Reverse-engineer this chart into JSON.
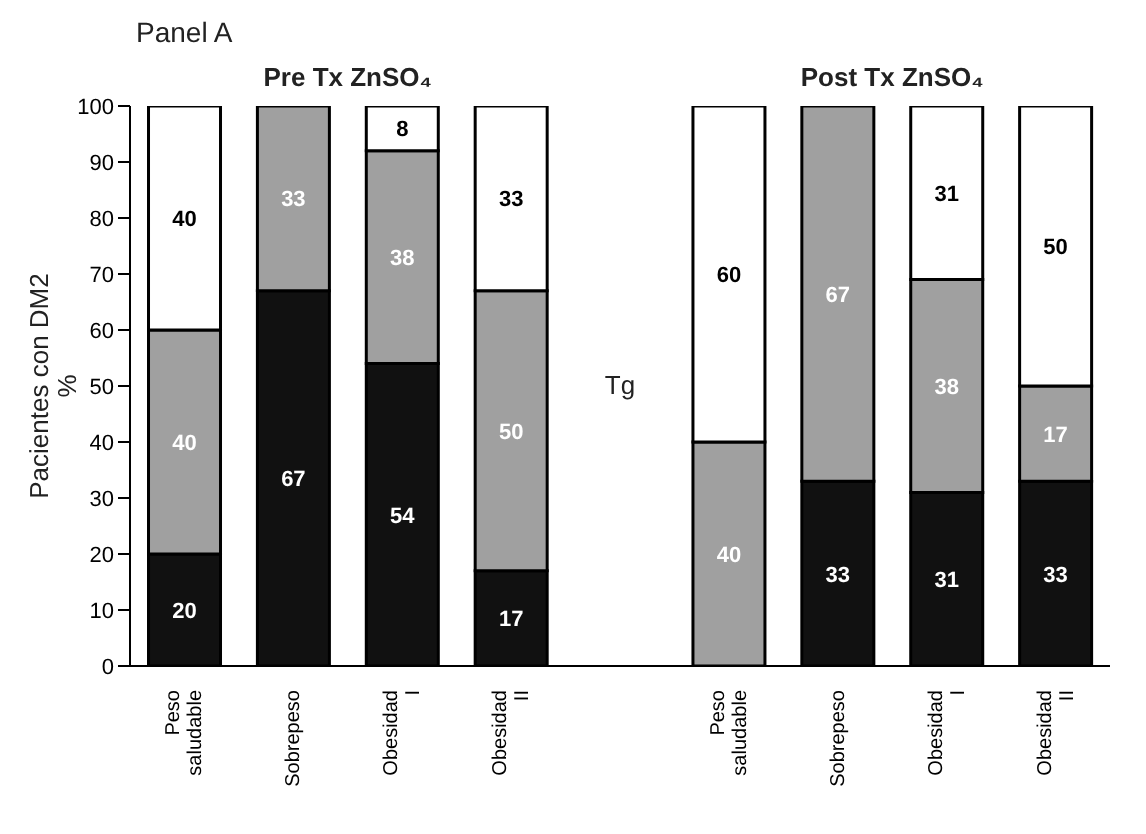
{
  "chart_data": {
    "type": "bar",
    "title": "Panel A",
    "ylabel": "Pacientes con  DM2\n%",
    "annotations": [
      "Pre Tx ZnSO₄",
      "Post Tx ZnSO₄",
      "Tg"
    ],
    "categories": [
      "Peso saludable",
      "Sobrepeso",
      "Obesidad I",
      "Obesidad II",
      null,
      "Peso saludable",
      "Sobrepeso",
      "Obesidad I",
      "Obesidad II"
    ],
    "stacked": true,
    "ylim": [
      0,
      100
    ],
    "yticks": [
      0,
      10,
      20,
      30,
      40,
      50,
      60,
      70,
      80,
      90,
      100
    ],
    "grid": false,
    "legend": false,
    "series": [
      {
        "color": "#111111",
        "values": [
          20,
          67,
          54,
          17,
          null,
          0,
          33,
          31,
          33
        ],
        "value_labels": [
          "20",
          "67",
          "54",
          "17",
          null,
          null,
          "33",
          "31",
          "33"
        ]
      },
      {
        "color": "#a0a0a0",
        "values": [
          40,
          33,
          38,
          50,
          null,
          40,
          67,
          38,
          17
        ],
        "value_labels": [
          "40",
          "33",
          "38",
          "50",
          null,
          "40",
          "67",
          "38",
          "17"
        ]
      },
      {
        "color": "#ffffff",
        "values": [
          40,
          0,
          8,
          33,
          null,
          60,
          0,
          31,
          50
        ],
        "value_labels": [
          "40",
          null,
          "8",
          "33",
          null,
          "60",
          null,
          "31",
          "50"
        ]
      }
    ]
  }
}
